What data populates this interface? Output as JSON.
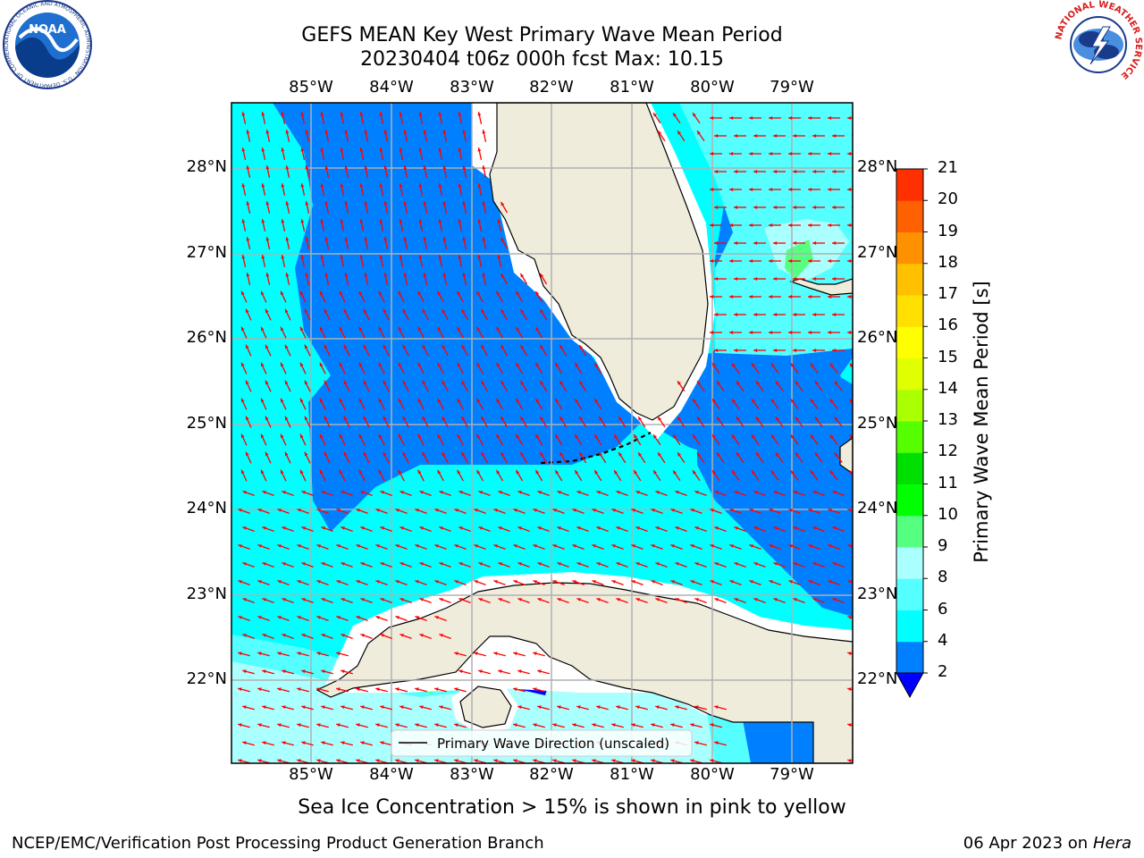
{
  "header": {
    "title_line1": "GEFS MEAN Key West Primary Wave Mean Period",
    "title_line2": "20230404 t06z 000h fcst   Max: 10.15"
  },
  "logos": {
    "noaa_text": "NOAA",
    "noaa_ring_text": "NATIONAL OCEANIC AND ATMOSPHERIC ADMINISTRATION · U.S. DEPARTMENT OF COMMERCE",
    "nws_ring_text": "NATIONAL WEATHER SERVICE"
  },
  "map": {
    "lon_labels": [
      "85°W",
      "84°W",
      "83°W",
      "82°W",
      "81°W",
      "80°W",
      "79°W"
    ],
    "lat_labels": [
      "28°N",
      "27°N",
      "26°N",
      "25°N",
      "24°N",
      "23°N",
      "22°N"
    ],
    "legend_label": "Primary Wave Direction (unscaled)",
    "colors": {
      "land": "#efecdc",
      "period_2_4": "#0080ff",
      "period_4_6": "#00ffff",
      "period_6_8": "#55ffff",
      "period_8_9": "#aaffff",
      "period_9_10": "#55ff80",
      "period_below_2": "#0000ff",
      "arrow": "#ff0000"
    }
  },
  "colorbar": {
    "label": "Primary Wave Mean Period [s]",
    "ticks": [
      "2",
      "4",
      "6",
      "8",
      "9",
      "10",
      "11",
      "12",
      "13",
      "14",
      "15",
      "16",
      "17",
      "18",
      "19",
      "20",
      "21"
    ],
    "colors": [
      "#0080ff",
      "#00ffff",
      "#55ffff",
      "#aaffff",
      "#55ff80",
      "#00ff00",
      "#00e000",
      "#55ff00",
      "#aaff00",
      "#e0ff00",
      "#ffff00",
      "#ffe000",
      "#ffc000",
      "#ff9000",
      "#ff6000",
      "#ff3000",
      "#ff0000"
    ],
    "under_color": "#0000ff"
  },
  "caption": "Sea Ice Concentration > 15% is shown in pink to yellow",
  "footer": {
    "left": "NCEP/EMC/Verification Post Processing Product Generation Branch",
    "right_date": "06 Apr 2023 on ",
    "right_host": "Hera"
  }
}
